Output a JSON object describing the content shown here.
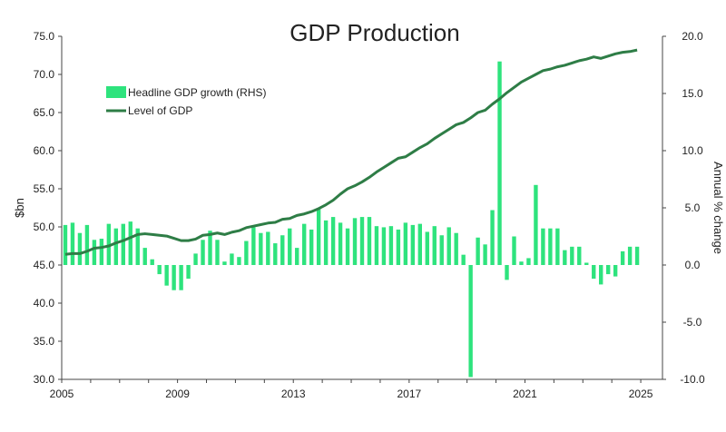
{
  "chart_data": {
    "type": "bar+line",
    "title": "GDP Production",
    "y_left_label": "$bn",
    "y_right_label": "Annual % change",
    "y_left_lim": [
      30,
      75
    ],
    "y_right_lim": [
      -10,
      20
    ],
    "y_left_ticks": [
      "30.0",
      "35.0",
      "40.0",
      "45.0",
      "50.0",
      "55.0",
      "60.0",
      "65.0",
      "70.0",
      "75.0"
    ],
    "y_right_ticks": [
      "-10.0",
      "-5.0",
      "0.0",
      "5.0",
      "10.0",
      "15.0",
      "20.0"
    ],
    "x_ticks": [
      "2005",
      "2009",
      "2013",
      "2017",
      "2021",
      "2025"
    ],
    "x_range": [
      "2005-Q1",
      "2025-Q3"
    ],
    "grid": false,
    "legend_position": "top-left",
    "legend": [
      "Headline GDP growth (RHS)",
      "Level of GDP"
    ],
    "colors": {
      "bar": "#2ee37d",
      "line": "#2e7d46"
    },
    "series": [
      {
        "name": "Headline GDP growth (RHS)",
        "kind": "bar",
        "axis": "right",
        "values": [
          3.5,
          3.7,
          2.8,
          3.5,
          2.2,
          2.3,
          3.6,
          3.2,
          3.6,
          3.8,
          3.2,
          1.5,
          0.5,
          -0.8,
          -1.8,
          -2.2,
          -2.2,
          -1.2,
          1.0,
          2.2,
          3.0,
          2.2,
          0.3,
          1.0,
          0.7,
          2.1,
          3.3,
          2.8,
          2.9,
          1.9,
          2.6,
          3.2,
          1.5,
          3.6,
          3.1,
          4.9,
          3.9,
          4.2,
          3.7,
          3.2,
          4.1,
          4.2,
          4.2,
          3.4,
          3.3,
          3.4,
          3.1,
          3.7,
          3.5,
          3.6,
          2.9,
          3.4,
          2.6,
          3.3,
          2.8,
          0.9,
          -9.8,
          2.4,
          1.8,
          4.8,
          17.8,
          -1.3,
          2.5,
          0.3,
          0.6,
          7.0,
          3.2,
          3.2,
          3.2,
          1.3,
          1.6,
          1.6,
          0.2,
          -1.2,
          -1.7,
          -0.8,
          -1.0,
          1.2,
          1.6,
          1.6
        ]
      },
      {
        "name": "Level of GDP",
        "kind": "line",
        "axis": "left",
        "values": [
          46.4,
          46.5,
          46.5,
          46.8,
          47.2,
          47.3,
          47.5,
          47.9,
          48.2,
          48.6,
          49.0,
          49.1,
          49.0,
          48.9,
          48.8,
          48.5,
          48.2,
          48.2,
          48.4,
          48.9,
          49.0,
          49.2,
          49.0,
          49.3,
          49.5,
          49.9,
          50.1,
          50.3,
          50.5,
          50.6,
          51.0,
          51.1,
          51.5,
          51.7,
          52.0,
          52.4,
          52.9,
          53.5,
          54.3,
          55.0,
          55.4,
          55.9,
          56.5,
          57.2,
          57.8,
          58.4,
          59.0,
          59.2,
          59.8,
          60.4,
          60.9,
          61.6,
          62.2,
          62.8,
          63.4,
          63.7,
          64.3,
          65.0,
          65.3,
          66.1,
          66.8,
          67.6,
          68.3,
          69.0,
          69.5,
          70.0,
          70.5,
          70.7,
          71.0,
          71.2,
          71.5,
          71.8,
          72.0,
          72.3,
          72.1,
          72.4,
          72.7,
          72.9,
          73.0,
          73.2
        ]
      }
    ]
  }
}
